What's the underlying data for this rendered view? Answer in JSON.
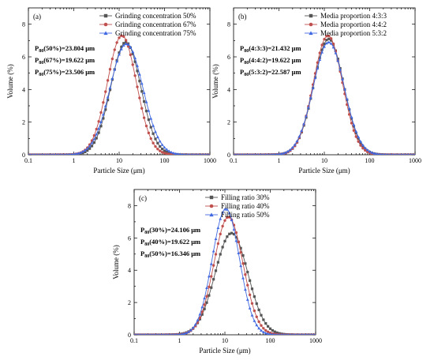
{
  "chart_data": [
    {
      "type": "line",
      "panel_label": "(a)",
      "xlabel": "Particle Size (μm)",
      "ylabel": "Volume (%)",
      "xscale": "log",
      "xlim": [
        0.1,
        1000
      ],
      "ylim": [
        0,
        9
      ],
      "x_ticks": [
        "0.1",
        "1",
        "10",
        "100",
        "1000"
      ],
      "y_ticks": [
        "0",
        "2",
        "4",
        "6",
        "8"
      ],
      "legend_position": "top-right",
      "annotations": [
        {
          "prefix": "P",
          "sub": "80",
          "text": "(50%)=23.804 μm"
        },
        {
          "prefix": "P",
          "sub": "80",
          "text": "(67%)=19.622 μm"
        },
        {
          "prefix": "P",
          "sub": "80",
          "text": "(75%)=23.506 μm"
        }
      ],
      "series": [
        {
          "name": "Grinding concentration 50%",
          "color": "#555555",
          "marker": "square",
          "peak_x": 14,
          "peak_y": 6.9,
          "sigma": 0.33
        },
        {
          "name": "Grinding concentration 67%",
          "color": "#c0504d",
          "marker": "circle",
          "peak_x": 11.5,
          "peak_y": 7.3,
          "sigma": 0.32
        },
        {
          "name": "Grinding concentration 75%",
          "color": "#4169e1",
          "marker": "triangle",
          "peak_x": 14.5,
          "peak_y": 6.8,
          "sigma": 0.36
        }
      ]
    },
    {
      "type": "line",
      "panel_label": "(b)",
      "xlabel": "Particle Size (μm)",
      "ylabel": "Volume (%)",
      "xscale": "log",
      "xlim": [
        0.1,
        1000
      ],
      "ylim": [
        0,
        9
      ],
      "x_ticks": [
        "0.1",
        "1",
        "10",
        "100",
        "1000"
      ],
      "y_ticks": [
        "0",
        "2",
        "4",
        "6",
        "8"
      ],
      "legend_position": "top-right",
      "annotations": [
        {
          "prefix": "P",
          "sub": "80",
          "text": "(4:3:3)=21.432 μm"
        },
        {
          "prefix": "P",
          "sub": "80",
          "text": "(4:4:2)=19.622 μm"
        },
        {
          "prefix": "P",
          "sub": "80",
          "text": "(5:3:2)=22.587 μm"
        }
      ],
      "series": [
        {
          "name": "Media proportion 4:3:3",
          "color": "#555555",
          "marker": "square",
          "peak_x": 12.5,
          "peak_y": 7.1,
          "sigma": 0.33
        },
        {
          "name": "Media proportion 4:4:2",
          "color": "#c0504d",
          "marker": "circle",
          "peak_x": 12,
          "peak_y": 7.3,
          "sigma": 0.32
        },
        {
          "name": "Media proportion 5:3:2",
          "color": "#4169e1",
          "marker": "triangle",
          "peak_x": 12.5,
          "peak_y": 6.9,
          "sigma": 0.34
        }
      ]
    },
    {
      "type": "line",
      "panel_label": "(c)",
      "xlabel": "Particle Size (μm)",
      "ylabel": "Volume (%)",
      "xscale": "log",
      "xlim": [
        0.1,
        1000
      ],
      "ylim": [
        0,
        9
      ],
      "x_ticks": [
        "0.1",
        "1",
        "10",
        "100",
        "1000"
      ],
      "y_ticks": [
        "0",
        "2",
        "4",
        "6",
        "8"
      ],
      "legend_position": "top-right",
      "annotations": [
        {
          "prefix": "P",
          "sub": "80",
          "text": "(30%)=24.106 μm"
        },
        {
          "prefix": "P",
          "sub": "80",
          "text": "(40%)=19.622 μm"
        },
        {
          "prefix": "P",
          "sub": "80",
          "text": "(50%)=16.346 μm"
        }
      ],
      "series": [
        {
          "name": "Filling ratio 30%",
          "color": "#555555",
          "marker": "square",
          "peak_x": 14,
          "peak_y": 6.3,
          "sigma": 0.36
        },
        {
          "name": "Filling ratio 40%",
          "color": "#c0504d",
          "marker": "circle",
          "peak_x": 12,
          "peak_y": 7.3,
          "sigma": 0.32
        },
        {
          "name": "Filling ratio 50%",
          "color": "#4169e1",
          "marker": "triangle",
          "peak_x": 10.5,
          "peak_y": 7.8,
          "sigma": 0.3
        }
      ]
    }
  ]
}
